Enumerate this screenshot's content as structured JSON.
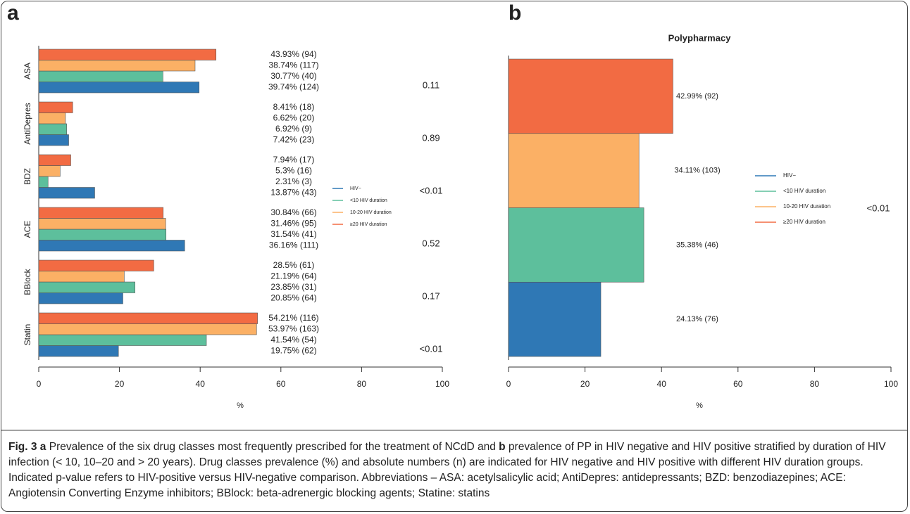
{
  "chart_data": [
    {
      "type": "bar",
      "panel": "a",
      "categories": [
        "ASA",
        "AntiDepres",
        "BDZ",
        "ACE",
        "BBlock",
        "Statin"
      ],
      "series": [
        {
          "name": "HIV−",
          "color": "#2f78b5",
          "values": [
            39.74,
            7.42,
            13.87,
            36.16,
            20.85,
            19.75
          ],
          "value_labels": [
            "39.74% (124)",
            "7.42% (23)",
            "13.87% (43)",
            "36.16% (111)",
            "20.85% (64)",
            "19.75% (62)"
          ]
        },
        {
          "name": "<10 HIV duration",
          "color": "#5dbf9c",
          "values": [
            30.77,
            6.92,
            2.31,
            31.54,
            23.85,
            41.54
          ],
          "value_labels": [
            "30.77% (40)",
            "6.92% (9)",
            "2.31% (3)",
            "31.54% (41)",
            "23.85% (31)",
            "41.54% (54)"
          ]
        },
        {
          "name": "10-20 HIV duration",
          "color": "#fbb065",
          "values": [
            38.74,
            6.62,
            5.3,
            31.46,
            21.19,
            53.97
          ],
          "value_labels": [
            "38.74% (117)",
            "6.62% (20)",
            "5.3% (16)",
            "31.46% (95)",
            "21.19% (64)",
            "53.97% (163)"
          ]
        },
        {
          "name": "≥20  HIV duration",
          "color": "#f26b43",
          "values": [
            43.93,
            8.41,
            7.94,
            30.84,
            28.5,
            54.21
          ],
          "value_labels": [
            "43.93% (94)",
            "8.41% (18)",
            "7.94% (17)",
            "30.84% (66)",
            "28.5% (61)",
            "54.21% (116)"
          ]
        }
      ],
      "pvalues": [
        "0.11",
        "0.89",
        "<0.01",
        "0.52",
        "0.17",
        "<0.01"
      ],
      "xlabel": "%",
      "xlim": [
        0,
        100
      ],
      "xticks": [
        0,
        20,
        40,
        60,
        80,
        100
      ]
    },
    {
      "type": "bar",
      "panel": "b",
      "title": "Polypharmacy",
      "series": [
        {
          "name": "HIV−",
          "color": "#2f78b5",
          "values": [
            24.13
          ],
          "value_labels": [
            "24.13% (76)"
          ]
        },
        {
          "name": "<10 HIV duration",
          "color": "#5dbf9c",
          "values": [
            35.38
          ],
          "value_labels": [
            "35.38% (46)"
          ]
        },
        {
          "name": "10-20 HIV duration",
          "color": "#fbb065",
          "values": [
            34.11
          ],
          "value_labels": [
            "34.11% (103)"
          ]
        },
        {
          "name": "≥20  HIV duration",
          "color": "#f26b43",
          "values": [
            42.99
          ],
          "value_labels": [
            "42.99% (92)"
          ]
        }
      ],
      "pvalues": [
        "<0.01"
      ],
      "xlabel": "%",
      "xlim": [
        0,
        100
      ],
      "xticks": [
        0,
        20,
        40,
        60,
        80,
        100
      ]
    }
  ],
  "caption": {
    "fig": "Fig. 3",
    "a": "a",
    "text1": "Prevalence of the six drug classes most frequently prescribed for the treatment of NCdD and",
    "b": "b",
    "text2": "prevalence of PP in HIV negative and HIV positive stratified by duration of HIV infection (< 10, 10–20 and > 20 years). Drug classes prevalence (%) and absolute numbers (n) are indicated for HIV negative and HIV positive with different HIV duration groups. Indicated p-value refers to HIV-positive versus HIV-negative comparison. Abbreviations – ASA: acetylsalicylic acid; AntiDepres: antidepressants; BZD: benzodiazepines; ACE: Angiotensin Converting Enzyme inhibitors; BBlock: beta-adrenergic blocking agents; Statine: statins"
  }
}
